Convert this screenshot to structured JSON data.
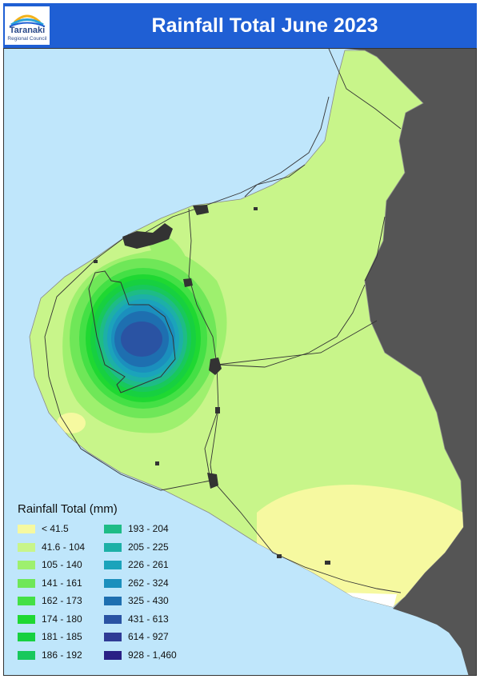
{
  "header": {
    "title": "Rainfall Total June 2023",
    "logo": {
      "name": "Taranaki",
      "subtitle": "Regional Council",
      "accent_color": "#1f5fd4"
    }
  },
  "map": {
    "sea_color": "#bfe6fb",
    "outside_region_color": "#555555",
    "towns_color": "#333333"
  },
  "legend": {
    "title": "Rainfall Total (mm)",
    "classes": [
      {
        "label": "< 41.5",
        "color": "#f6f9a0"
      },
      {
        "label": "41.6 - 104",
        "color": "#c8f58a"
      },
      {
        "label": "105 - 140",
        "color": "#9ef06e"
      },
      {
        "label": "141 - 161",
        "color": "#6fe758"
      },
      {
        "label": "162 - 173",
        "color": "#44e045"
      },
      {
        "label": "174 - 180",
        "color": "#1fd832"
      },
      {
        "label": "181 - 185",
        "color": "#17d040"
      },
      {
        "label": "186 - 192",
        "color": "#18c85c"
      },
      {
        "label": "193 - 204",
        "color": "#1ebc86"
      },
      {
        "label": "205 - 225",
        "color": "#1db0a6"
      },
      {
        "label": "226 - 261",
        "color": "#1ba3bb"
      },
      {
        "label": "262 - 324",
        "color": "#1b8fbd"
      },
      {
        "label": "325 - 430",
        "color": "#1e6fb0"
      },
      {
        "label": "431 - 613",
        "color": "#2a53a3"
      },
      {
        "label": "614 - 927",
        "color": "#2f3b95"
      },
      {
        "label": "928 - 1,460",
        "color": "#2a2085"
      }
    ]
  }
}
